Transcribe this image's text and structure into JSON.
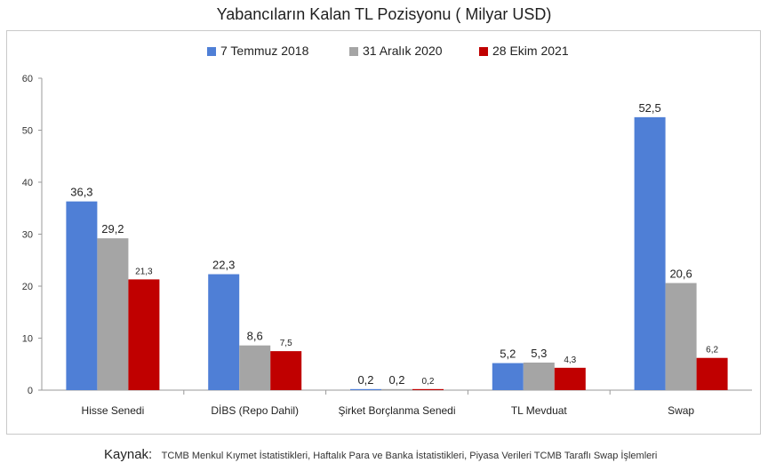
{
  "title": "Yabancıların Kalan TL Pozisyonu ( Milyar USD)",
  "source": {
    "label": "Kaynak:",
    "text": "TCMB Menkul Kıymet İstatistikleri, Haftalık Para ve Banka İstatistikleri, Piyasa Verileri TCMB Taraflı Swap İşlemleri"
  },
  "chart_data": {
    "type": "bar",
    "title": "Yabancıların Kalan TL Pozisyonu ( Milyar USD)",
    "categories": [
      "Hisse Senedi",
      "DİBS (Repo Dahil)",
      "Şirket Borçlanma Senedi",
      "TL Mevduat",
      "Swap"
    ],
    "series": [
      {
        "name": "7 Temmuz 2018",
        "color": "#4f7fd6",
        "values": [
          36.3,
          22.3,
          0.2,
          5.2,
          52.5
        ],
        "labels": [
          "36,3",
          "22,3",
          "0,2",
          "5,2",
          "52,5"
        ]
      },
      {
        "name": "31 Aralık 2020",
        "color": "#a5a5a5",
        "values": [
          29.2,
          8.6,
          0.2,
          5.3,
          20.6
        ],
        "labels": [
          "29,2",
          "8,6",
          "0,2",
          "5,3",
          "20,6"
        ]
      },
      {
        "name": "28 Ekim 2021",
        "color": "#c00000",
        "values": [
          21.3,
          7.5,
          0.2,
          4.3,
          6.2
        ],
        "labels": [
          "21,3",
          "7,5",
          "0,2",
          "4,3",
          "6,2"
        ]
      }
    ],
    "ylim": [
      0,
      60
    ],
    "yticks": [
      "0",
      "10",
      "20",
      "30",
      "40",
      "50",
      "60"
    ],
    "grid": false,
    "legend": "top-center"
  }
}
